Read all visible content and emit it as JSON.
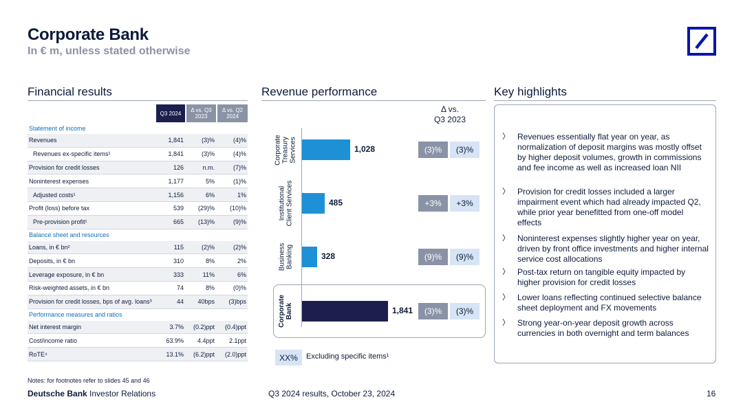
{
  "header": {
    "title": "Corporate Bank",
    "subtitle": "In € m, unless stated otherwise",
    "logo_icon": "deutsche-bank-slash-logo"
  },
  "sections": {
    "financial": "Financial results",
    "revenue": "Revenue performance",
    "highlights": "Key highlights"
  },
  "table": {
    "headers": [
      "Q3 2024",
      "Δ vs. Q3 2023",
      "Δ vs. Q2 2024"
    ],
    "groups": [
      {
        "title": "Statement of income",
        "rows": [
          {
            "label": "Revenues",
            "indent": false,
            "values": [
              "1,841",
              "(3)%",
              "(4)%"
            ]
          },
          {
            "label": "Revenues ex-specific items¹",
            "indent": true,
            "values": [
              "1,841",
              "(3)%",
              "(4)%"
            ]
          },
          {
            "label": "Provision for credit losses",
            "indent": false,
            "values": [
              "126",
              "n.m.",
              "(7)%"
            ]
          },
          {
            "label": "Noninterest expenses",
            "indent": false,
            "values": [
              "1,177",
              "5%",
              "(1)%"
            ]
          },
          {
            "label": "Adjusted costs¹",
            "indent": true,
            "values": [
              "1,156",
              "6%",
              "1%"
            ]
          },
          {
            "label": "Profit (loss) before tax",
            "indent": false,
            "values": [
              "539",
              "(29)%",
              "(10)%"
            ]
          },
          {
            "label": "Pre-provision profit¹",
            "indent": true,
            "values": [
              "665",
              "(13)%",
              "(9)%"
            ]
          }
        ]
      },
      {
        "title": "Balance sheet and resources",
        "rows": [
          {
            "label": "Loans, in € bn²",
            "indent": false,
            "values": [
              "115",
              "(2)%",
              "(2)%"
            ]
          },
          {
            "label": "Deposits, in € bn",
            "indent": false,
            "values": [
              "310",
              "8%",
              "2%"
            ]
          },
          {
            "label": "Leverage exposure, in € bn",
            "indent": false,
            "values": [
              "333",
              "11%",
              "6%"
            ]
          },
          {
            "label": "Risk-weighted assets, in € bn",
            "indent": false,
            "values": [
              "74",
              "8%",
              "(0)%"
            ]
          },
          {
            "label": "Provision for credit losses, bps of avg. loans³",
            "indent": false,
            "values": [
              "44",
              "40bps",
              "(3)bps"
            ]
          }
        ]
      },
      {
        "title": "Performance measures and ratios",
        "rows": [
          {
            "label": "Net interest margin",
            "indent": false,
            "values": [
              "3.7%",
              "(0.2)ppt",
              "(0.4)ppt"
            ]
          },
          {
            "label": "Cost/income ratio",
            "indent": false,
            "values": [
              "63.9%",
              "4.4ppt",
              "2.1ppt"
            ]
          },
          {
            "label": "RoTE⁴",
            "indent": false,
            "values": [
              "13.1%",
              "(6.2)ppt",
              "(2.0)ppt"
            ]
          }
        ]
      }
    ]
  },
  "notes": "Notes: for footnotes refer to slides 45 and 46",
  "revenue": {
    "delta_header": [
      "Δ vs.",
      "Q3 2023"
    ],
    "legend_pill": "XX%",
    "legend_text": "Excluding specific items¹",
    "bar_color": "#1e90d6",
    "total_color": "#1c1f4e"
  },
  "chart_data": {
    "type": "bar",
    "orientation": "horizontal",
    "categories": [
      [
        "Corporate",
        "Treasury",
        "Services"
      ],
      [
        "Institutional",
        "Client Services"
      ],
      [
        "Business",
        "Banking"
      ],
      [
        "Corporate",
        "Bank"
      ]
    ],
    "values": [
      1028,
      485,
      328,
      1841
    ],
    "value_labels": [
      "1,028",
      "485",
      "328",
      "1,841"
    ],
    "delta_vs_q3_2023": [
      "(3)%",
      "+3%",
      "(9)%",
      "(3)%"
    ],
    "delta_ex_specific_items": [
      "(3)%",
      "+3%",
      "(9)%",
      "(3)%"
    ],
    "xlim": [
      0,
      1841
    ]
  },
  "highlights": [
    "Revenues essentially flat year on year, as normalization of deposit margins was mostly offset by higher deposit volumes, growth in commissions and fee income as well as increased loan NII",
    "Provision for credit losses included a larger impairment event which had already impacted Q2, while prior year benefitted from one-off model effects",
    "Noninterest expenses slightly higher year on year, driven by front office investments and higher internal service cost allocations",
    "Post-tax return on tangible equity impacted by higher provision for credit losses",
    "Lower loans reflecting continued selective balance sheet deployment and FX movements",
    "Strong year-on-year deposit growth across currencies in both overnight and term balances"
  ],
  "footer": {
    "brand_bold": "Deutsche Bank",
    "brand_rest": "Investor Relations",
    "center": "Q3 2024 results, October 23, 2024",
    "page": "16"
  }
}
